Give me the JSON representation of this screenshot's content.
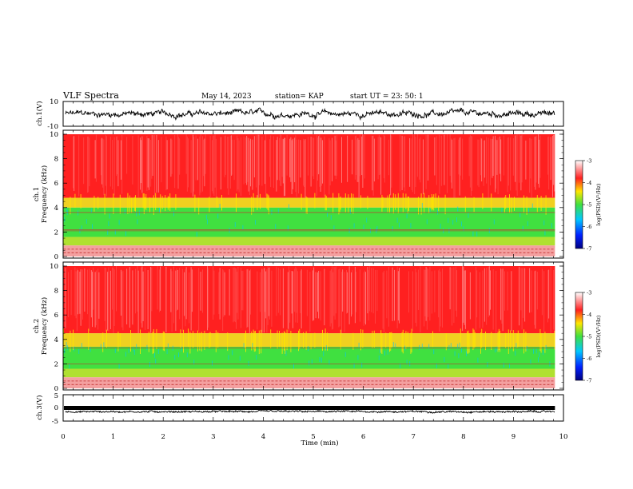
{
  "header": {
    "title": "VLF Spectra",
    "date": "May 14, 2023",
    "station": "station= KAP",
    "start_ut": "start  UT  =   23: 50: 1"
  },
  "colors": {
    "low": "#000080",
    "mid_low": "#00c8ff",
    "mid": "#40e040",
    "mid_high": "#ffe600",
    "high": "#ff2020",
    "max": "#ffffff",
    "trace": "#000000"
  },
  "chart_data": [
    {
      "type": "line",
      "name": "waveform-ch1",
      "ylabel": "ch.1(V)",
      "ylim": [
        -10,
        10
      ],
      "yticks": [
        "10",
        "-10"
      ],
      "baseline": 0,
      "amplitude": 3.5
    },
    {
      "type": "heatmap",
      "name": "spectrogram-ch1",
      "ylabel": "ch.1\nFrequency (kHz)",
      "ylabel_lines": [
        "ch.1",
        "Frequency (kHz)"
      ],
      "ylim": [
        0,
        10
      ],
      "yticks": [
        "10",
        "8",
        "6",
        "4",
        "2",
        "0"
      ],
      "colorbar": {
        "label": "log(PSD)(V²/Hz)",
        "range": [
          -7,
          -3
        ],
        "ticks": [
          "-3",
          "-4",
          "-5",
          "-6",
          "-7"
        ]
      },
      "bands_khz": {
        "noise_floor_top": 4.8,
        "quiet_band": [
          1.6,
          4.0
        ],
        "lines": [
          2.1,
          2.2,
          3.6
        ]
      }
    },
    {
      "type": "heatmap",
      "name": "spectrogram-ch2",
      "ylabel": "ch.2\nFrequency (kHz)",
      "ylabel_lines": [
        "ch.2",
        "Frequency (kHz)"
      ],
      "ylim": [
        0,
        10
      ],
      "yticks": [
        "10",
        "8",
        "6",
        "4",
        "2",
        "0"
      ],
      "colorbar": {
        "label": "log(PSD)(V²/Hz)",
        "range": [
          -7,
          -3
        ],
        "ticks": [
          "-3",
          "-4",
          "-5",
          "-6",
          "-7"
        ]
      },
      "bands_khz": {
        "noise_floor_top": 4.5,
        "quiet_band": [
          1.6,
          3.4
        ],
        "lines": [
          2.0,
          3.3
        ]
      }
    },
    {
      "type": "line",
      "name": "waveform-ch3",
      "ylabel": "ch.3(V)",
      "ylim": [
        -5,
        5
      ],
      "yticks": [
        "5",
        "0",
        "-5"
      ],
      "baseline": -1.5,
      "amplitude": 0.6
    }
  ],
  "x_axis": {
    "label": "Time (min)",
    "range": [
      0,
      10
    ],
    "data_end": 9.83,
    "ticks": [
      "0",
      "1",
      "2",
      "3",
      "4",
      "5",
      "6",
      "7",
      "8",
      "9",
      "10"
    ]
  }
}
